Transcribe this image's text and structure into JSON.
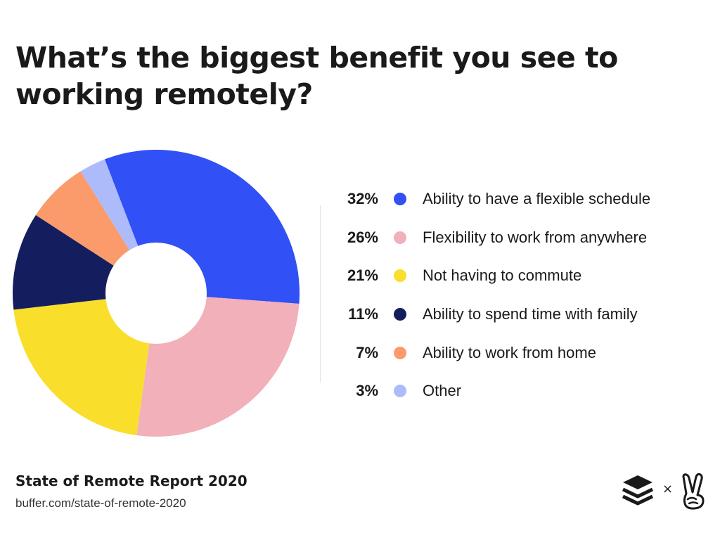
{
  "title": "What’s the biggest benefit you see to working remotely?",
  "chart_data": {
    "type": "pie",
    "variant": "donut",
    "categories": [
      "Ability to have a flexible schedule",
      "Flexibility to work from anywhere",
      "Not having to commute",
      "Ability to spend time with family",
      "Ability to work from home",
      "Other"
    ],
    "values": [
      32,
      26,
      21,
      11,
      7,
      3
    ],
    "value_labels": [
      "32%",
      "26%",
      "21%",
      "11%",
      "7%",
      "3%"
    ],
    "colors": [
      "#3150f5",
      "#f2b0ba",
      "#f9de2c",
      "#141e5e",
      "#fb9a6b",
      "#aebbfb"
    ],
    "legend": "right"
  },
  "footer": {
    "title": "State of Remote Report 2020",
    "url": "buffer.com/state-of-remote-2020"
  },
  "logos": {
    "buffer_icon": "buffer-logo-icon",
    "separator": "×",
    "peace_icon": "peace-hand-icon"
  }
}
